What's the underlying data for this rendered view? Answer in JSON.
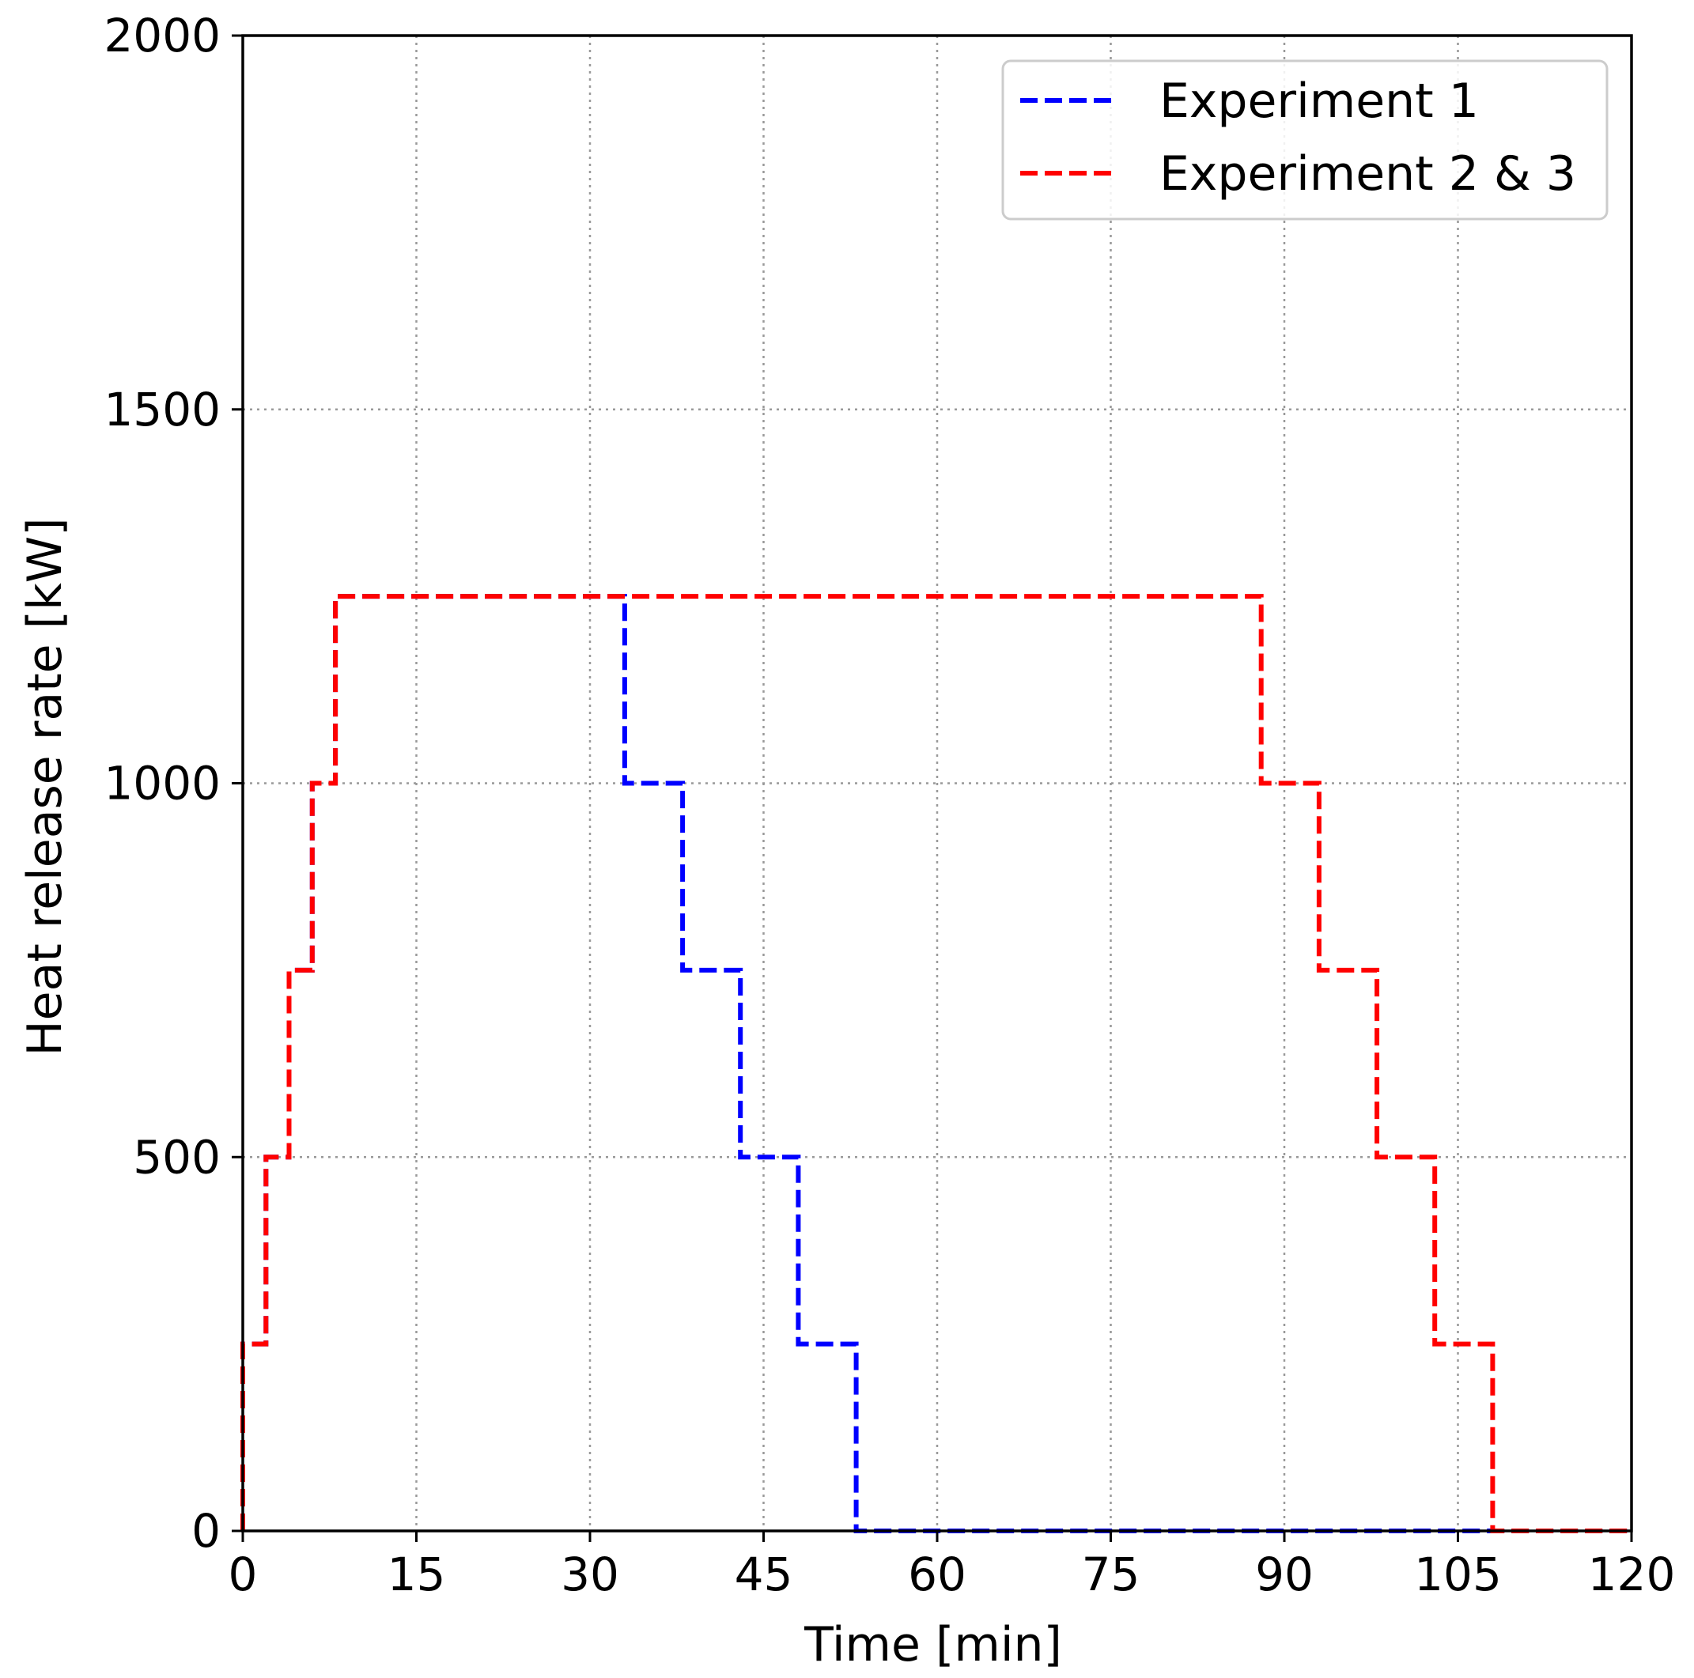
{
  "chart_data": {
    "type": "line",
    "xlabel": "Time [min]",
    "ylabel": "Heat release rate [kW]",
    "xlim": [
      0,
      120
    ],
    "ylim": [
      0,
      2000
    ],
    "xticks": [
      0,
      15,
      30,
      45,
      60,
      75,
      90,
      105,
      120
    ],
    "yticks": [
      0,
      500,
      1000,
      1500,
      2000
    ],
    "xtick_labels": [
      "0",
      "15",
      "30",
      "45",
      "60",
      "75",
      "90",
      "105",
      "120"
    ],
    "ytick_labels": [
      "0",
      "500",
      "1000",
      "1500",
      "2000"
    ],
    "grid": true,
    "legend_position": "top-right",
    "series": [
      {
        "name": "Experiment 1",
        "color": "#0000ff",
        "style": "dashed",
        "points": [
          [
            0,
            0
          ],
          [
            0,
            250
          ],
          [
            2,
            250
          ],
          [
            2,
            500
          ],
          [
            4,
            500
          ],
          [
            4,
            750
          ],
          [
            6,
            750
          ],
          [
            6,
            1000
          ],
          [
            8,
            1000
          ],
          [
            8,
            1250
          ],
          [
            33,
            1250
          ],
          [
            33,
            1000
          ],
          [
            38,
            1000
          ],
          [
            38,
            750
          ],
          [
            43,
            750
          ],
          [
            43,
            500
          ],
          [
            48,
            500
          ],
          [
            48,
            250
          ],
          [
            53,
            250
          ],
          [
            53,
            0
          ],
          [
            120,
            0
          ]
        ]
      },
      {
        "name": "Experiment 2 & 3",
        "color": "#ff0000",
        "style": "dashed",
        "points": [
          [
            0,
            0
          ],
          [
            0,
            250
          ],
          [
            2,
            250
          ],
          [
            2,
            500
          ],
          [
            4,
            500
          ],
          [
            4,
            750
          ],
          [
            6,
            750
          ],
          [
            6,
            1000
          ],
          [
            8,
            1000
          ],
          [
            8,
            1250
          ],
          [
            88,
            1250
          ],
          [
            88,
            1000
          ],
          [
            93,
            1000
          ],
          [
            93,
            750
          ],
          [
            98,
            750
          ],
          [
            98,
            500
          ],
          [
            103,
            500
          ],
          [
            103,
            250
          ],
          [
            108,
            250
          ],
          [
            108,
            0
          ],
          [
            120,
            0
          ]
        ]
      }
    ]
  }
}
